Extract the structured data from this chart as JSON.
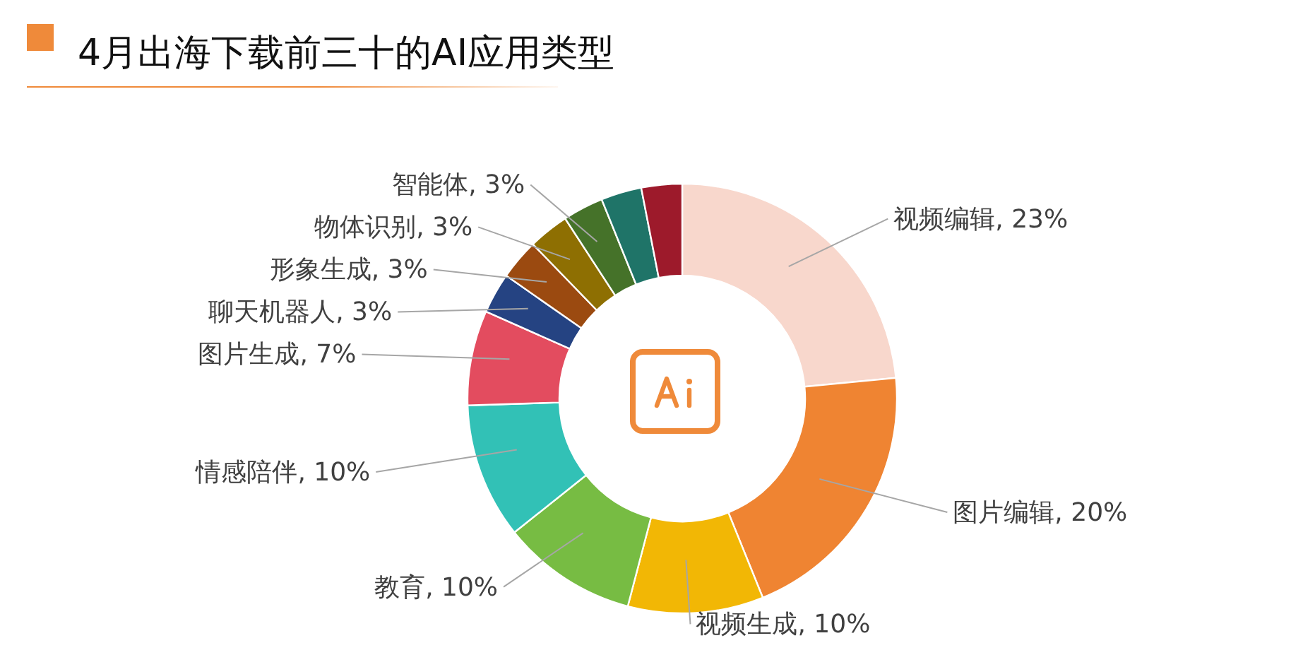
{
  "chart_data": {
    "type": "donut",
    "title": "4月出海下载前三十的AI应用类型",
    "categories": [
      "视频编辑",
      "图片编辑",
      "视频生成",
      "教育",
      "情感陪伴",
      "图片生成",
      "聊天机器人",
      "形象生成",
      "物体识别",
      "智能体",
      null,
      null
    ],
    "values": [
      23,
      20,
      10,
      10,
      10,
      7,
      3,
      3,
      3,
      3,
      3,
      3
    ],
    "colors": [
      "#f8d7cc",
      "#ef8432",
      "#f2b705",
      "#77bc43",
      "#32c1b6",
      "#e34c5f",
      "#254382",
      "#9b4a10",
      "#8e6f02",
      "#457229",
      "#1f7468",
      "#9d1a2b"
    ],
    "value_labels": [
      "23%",
      "20%",
      "10%",
      "10%",
      "10%",
      "7%",
      "3%",
      "3%",
      "3%",
      "3%",
      null,
      null
    ]
  }
}
